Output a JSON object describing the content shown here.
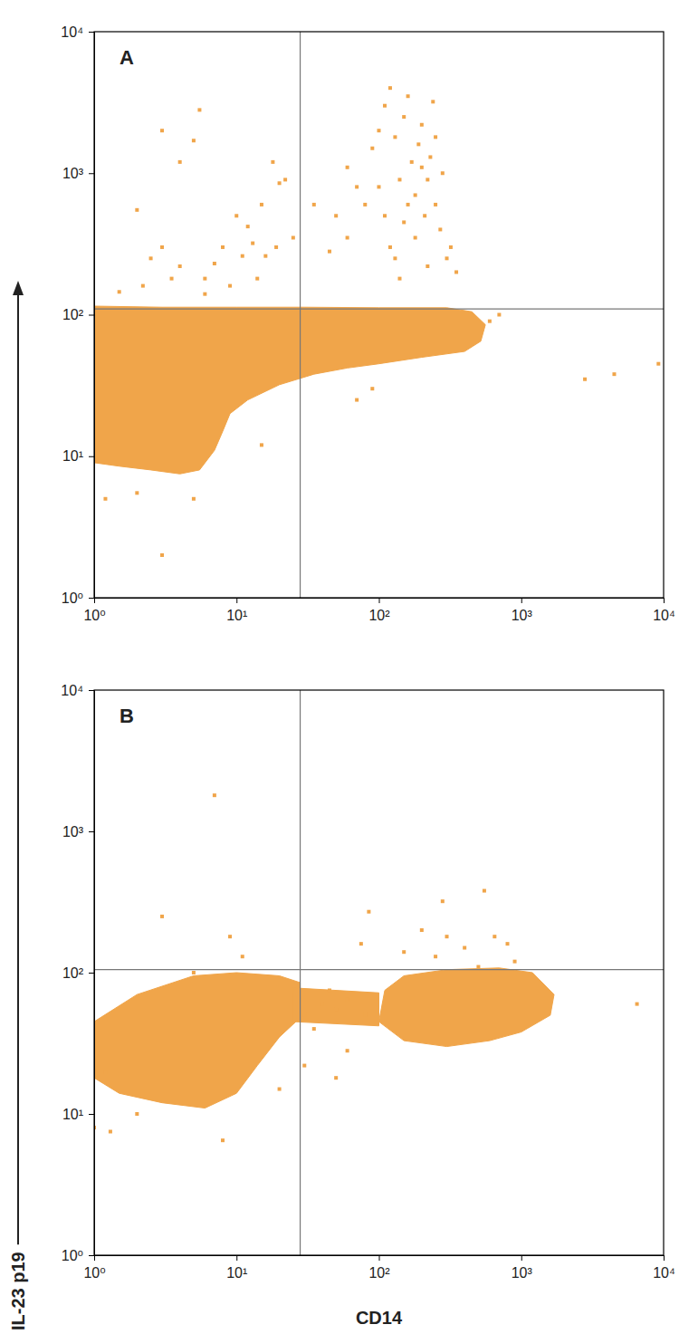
{
  "chart_data": [
    {
      "type": "scatter",
      "title": "A",
      "ylabel": "IL-23 p19",
      "log": true,
      "color": "#f0a54a",
      "xlim": [
        1,
        10000
      ],
      "ylim": [
        1,
        10000
      ],
      "xticks": [
        {
          "value": 1,
          "label": "10⁰"
        },
        {
          "value": 10,
          "label": "10¹"
        },
        {
          "value": 100,
          "label": "10²"
        },
        {
          "value": 1000,
          "label": "10³"
        },
        {
          "value": 10000,
          "label": "10⁴"
        }
      ],
      "yticks": [
        {
          "value": 1,
          "label": "10⁰"
        },
        {
          "value": 10,
          "label": "10¹"
        },
        {
          "value": 100,
          "label": "10²"
        },
        {
          "value": 1000,
          "label": "10³"
        },
        {
          "value": 10000,
          "label": "10⁴"
        }
      ],
      "gate": {
        "x": 28,
        "y": 110
      },
      "regions": [
        {
          "x": [
            1,
            1.5,
            2.5,
            4,
            5.5,
            7,
            8,
            9,
            12,
            20,
            35,
            60,
            100,
            200,
            400,
            520,
            560,
            450,
            300,
            100,
            30,
            10,
            3,
            1
          ],
          "y": [
            9,
            8.5,
            8,
            7.5,
            8,
            11,
            15,
            20,
            25,
            32,
            38,
            42,
            45,
            50,
            55,
            65,
            85,
            105,
            112,
            112,
            113,
            113,
            113,
            115
          ]
        }
      ],
      "x": [
        2,
        3,
        5,
        5.5,
        4,
        2.5,
        3,
        4,
        6,
        8,
        10,
        12,
        15,
        18,
        20,
        22,
        25,
        7,
        9,
        14,
        16,
        3.5,
        6,
        1.5,
        2.2,
        11,
        13,
        19,
        60,
        70,
        80,
        90,
        100,
        110,
        120,
        130,
        140,
        150,
        160,
        170,
        180,
        190,
        200,
        210,
        220,
        230,
        240,
        250,
        270,
        300,
        320,
        350,
        180,
        130,
        150,
        100,
        110,
        250,
        200,
        160,
        120,
        140,
        220,
        280,
        60,
        45,
        35,
        50,
        3,
        2,
        1.2,
        5,
        15,
        70,
        90,
        2800,
        4500,
        9200,
        600,
        700
      ],
      "values": [
        550,
        2000,
        1700,
        2800,
        1200,
        250,
        300,
        220,
        180,
        300,
        500,
        420,
        600,
        1200,
        850,
        900,
        350,
        230,
        160,
        180,
        260,
        180,
        140,
        145,
        160,
        260,
        320,
        300,
        1100,
        800,
        600,
        1500,
        2000,
        3000,
        4000,
        1800,
        900,
        2500,
        3500,
        1200,
        700,
        1600,
        2200,
        500,
        900,
        1300,
        3200,
        600,
        400,
        250,
        300,
        200,
        350,
        250,
        450,
        800,
        500,
        1800,
        1100,
        600,
        300,
        180,
        220,
        1000,
        350,
        280,
        600,
        500,
        2,
        5.5,
        5,
        5,
        12,
        25,
        30,
        35,
        38,
        45,
        90,
        100
      ]
    },
    {
      "type": "scatter",
      "title": "B",
      "xlabel": "CD14",
      "log": true,
      "color": "#f0a54a",
      "xlim": [
        1,
        10000
      ],
      "ylim": [
        1,
        10000
      ],
      "xticks": [
        {
          "value": 1,
          "label": "10⁰"
        },
        {
          "value": 10,
          "label": "10¹"
        },
        {
          "value": 100,
          "label": "10²"
        },
        {
          "value": 1000,
          "label": "10³"
        },
        {
          "value": 10000,
          "label": "10⁴"
        }
      ],
      "yticks": [
        {
          "value": 1,
          "label": "10⁰"
        },
        {
          "value": 10,
          "label": "10¹"
        },
        {
          "value": 100,
          "label": "10²"
        },
        {
          "value": 1000,
          "label": "10³"
        },
        {
          "value": 10000,
          "label": "10⁴"
        }
      ],
      "gate": {
        "x": 28,
        "y": 105
      },
      "regions": [
        {
          "x": [
            1,
            1.5,
            3,
            6,
            10,
            14,
            20,
            28,
            28,
            20,
            10,
            5,
            2,
            1
          ],
          "y": [
            18,
            14,
            12,
            11,
            14,
            22,
            35,
            48,
            85,
            95,
            100,
            95,
            70,
            45
          ]
        },
        {
          "x": [
            100,
            150,
            300,
            600,
            1000,
            1600,
            1700,
            1200,
            700,
            300,
            150,
            110
          ],
          "y": [
            45,
            33,
            30,
            33,
            38,
            50,
            70,
            100,
            108,
            105,
            95,
            75
          ]
        },
        {
          "x": [
            25,
            100,
            100,
            25
          ],
          "y": [
            45,
            42,
            72,
            78
          ]
        }
      ],
      "x": [
        7,
        3,
        9,
        11,
        85,
        75,
        280,
        550,
        200,
        300,
        400,
        650,
        800,
        250,
        150,
        500,
        6500,
        900,
        1,
        1.3,
        8,
        2,
        30,
        50,
        60,
        20,
        5,
        1,
        1.2,
        30,
        40,
        50,
        60,
        80,
        35,
        70,
        45
      ],
      "values": [
        1800,
        250,
        180,
        130,
        270,
        160,
        320,
        380,
        200,
        180,
        150,
        180,
        160,
        130,
        140,
        110,
        60,
        120,
        8,
        7.5,
        6.5,
        10,
        22,
        18,
        28,
        15,
        100,
        30,
        20,
        50,
        60,
        55,
        65,
        50,
        40,
        45,
        75
      ]
    }
  ]
}
